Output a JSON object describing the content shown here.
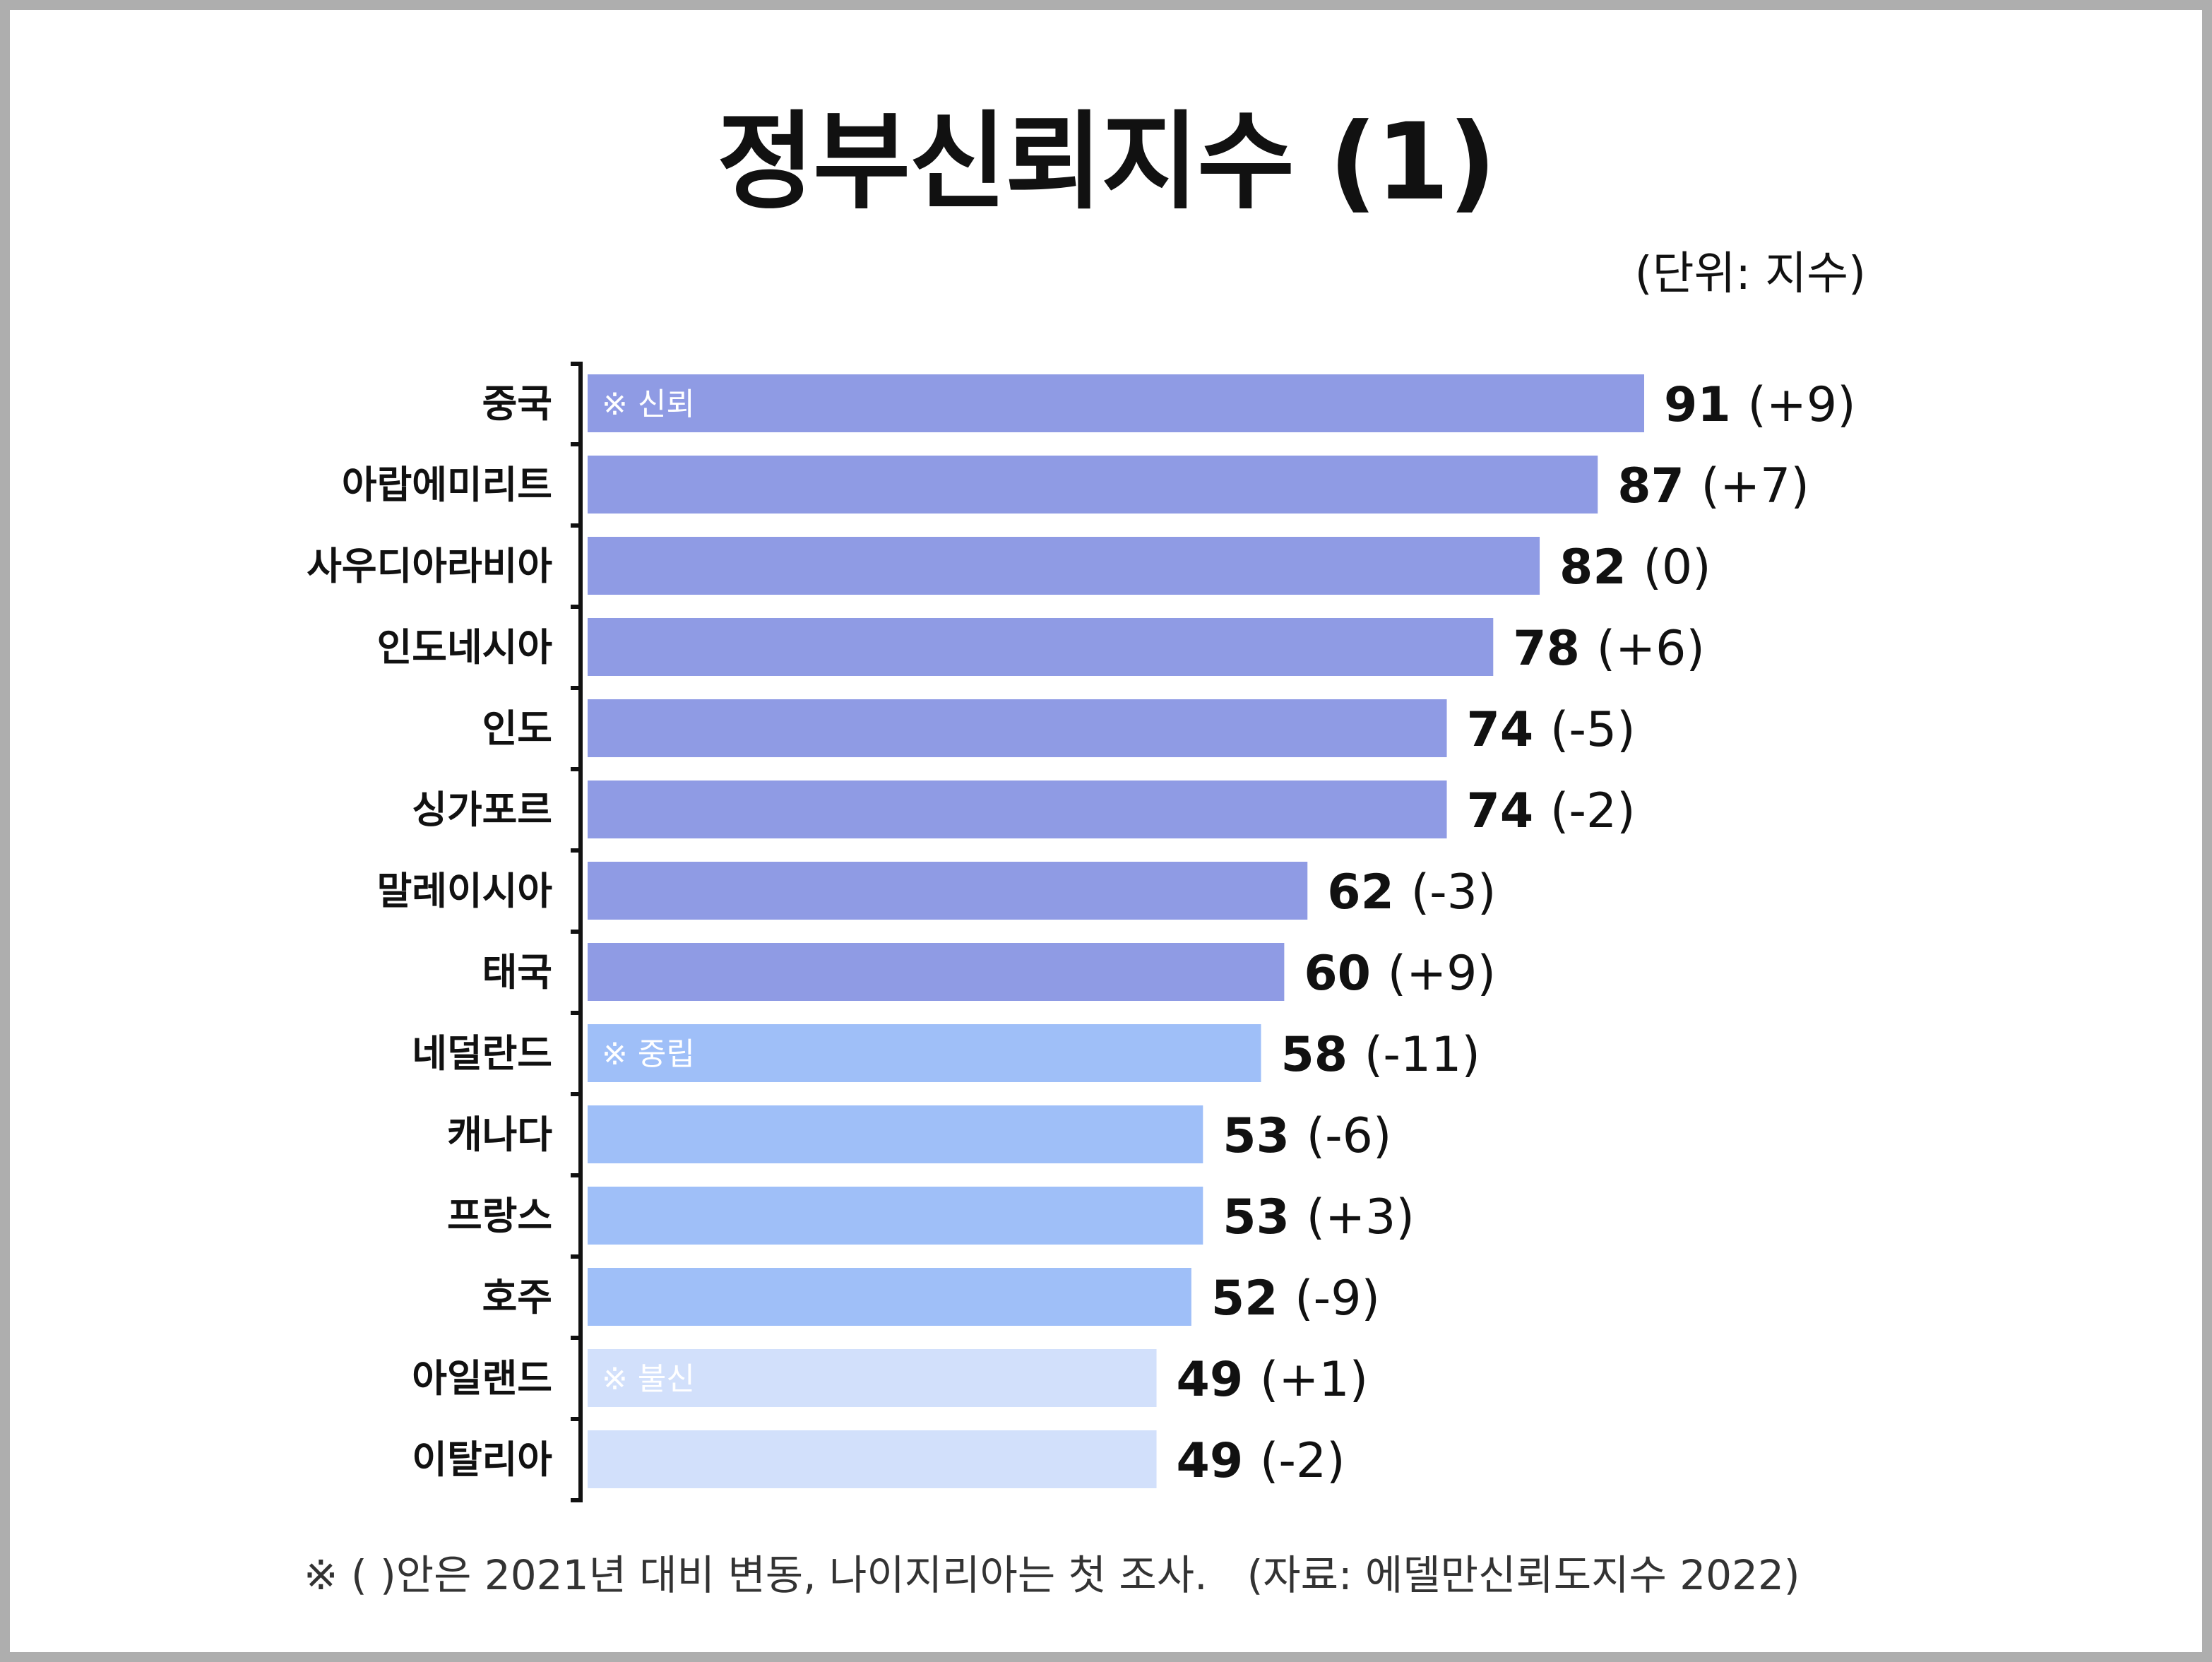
{
  "title": "정부신뢰지수 (1)",
  "unit_label": "(단위: 지수)",
  "footnote": "※ ( )안은 2021년 대비 변동, 나이지리아는 첫 조사.",
  "source": "(자료: 에델만신뢰도지수 2022)",
  "colors": {
    "trust": "#8f9be4",
    "neutral": "#9fbff8",
    "distrust": "#d2e0fb",
    "axis": "#111111"
  },
  "chart_data": {
    "type": "bar",
    "orientation": "horizontal",
    "xlim": [
      0,
      91
    ],
    "categories": [
      "중국",
      "아랍에미리트",
      "사우디아라비아",
      "인도네시아",
      "인도",
      "싱가포르",
      "말레이시아",
      "태국",
      "네덜란드",
      "캐나다",
      "프랑스",
      "호주",
      "아일랜드",
      "이탈리아"
    ],
    "values": [
      91,
      87,
      82,
      78,
      74,
      74,
      62,
      60,
      58,
      53,
      53,
      52,
      49,
      49
    ],
    "changes": [
      "(+9)",
      "(+7)",
      "(0)",
      "(+6)",
      "(-5)",
      "(-2)",
      "(-3)",
      "(+9)",
      "(-11)",
      "(-6)",
      "(+3)",
      "(-9)",
      "(+1)",
      "(-2)"
    ],
    "groups": [
      "trust",
      "trust",
      "trust",
      "trust",
      "trust",
      "trust",
      "trust",
      "trust",
      "neutral",
      "neutral",
      "neutral",
      "neutral",
      "distrust",
      "distrust"
    ],
    "group_labels": [
      {
        "group": "trust",
        "label": "※ 신뢰"
      },
      {
        "group": "neutral",
        "label": "※ 중립"
      },
      {
        "group": "distrust",
        "label": "※ 불신"
      }
    ],
    "grid": false
  }
}
